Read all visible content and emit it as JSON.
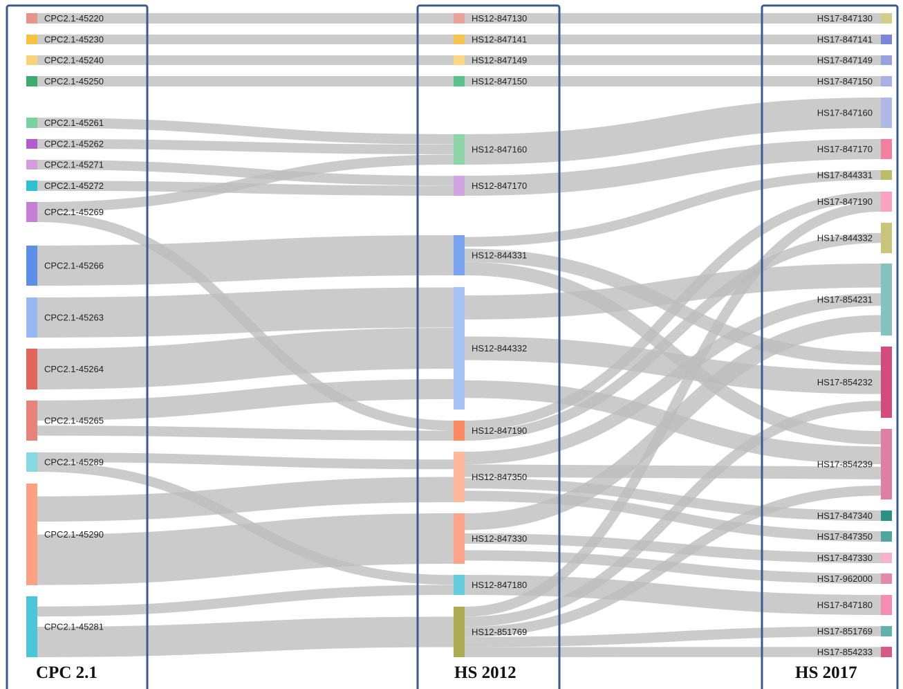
{
  "columns": [
    {
      "id": "cpc",
      "title": "CPC 2.1"
    },
    {
      "id": "hs12",
      "title": "HS 2012"
    },
    {
      "id": "hs17",
      "title": "HS 2017"
    }
  ],
  "colors": {
    "link": "#bdbdbd",
    "frame": "#3a5a8c"
  },
  "nodes": [
    {
      "id": "c45220",
      "label": "CPC2.1-45220",
      "col": 0,
      "color": "#e8948c"
    },
    {
      "id": "c45230",
      "label": "CPC2.1-45230",
      "col": 0,
      "color": "#f5c242"
    },
    {
      "id": "c45240",
      "label": "CPC2.1-45240",
      "col": 0,
      "color": "#fad27a"
    },
    {
      "id": "c45250",
      "label": "CPC2.1-45250",
      "col": 0,
      "color": "#3daa6e"
    },
    {
      "id": "c45261",
      "label": "CPC2.1-45261",
      "col": 0,
      "color": "#7ccfa0"
    },
    {
      "id": "c45262",
      "label": "CPC2.1-45262",
      "col": 0,
      "color": "#b35bd0"
    },
    {
      "id": "c45271",
      "label": "CPC2.1-45271",
      "col": 0,
      "color": "#d69ce0"
    },
    {
      "id": "c45272",
      "label": "CPC2.1-45272",
      "col": 0,
      "color": "#2ec0d0"
    },
    {
      "id": "c45269",
      "label": "CPC2.1-45269",
      "col": 0,
      "color": "#c67fd6"
    },
    {
      "id": "c45266",
      "label": "CPC2.1-45266",
      "col": 0,
      "color": "#5b8fe8"
    },
    {
      "id": "c45263",
      "label": "CPC2.1-45263",
      "col": 0,
      "color": "#98b8f2"
    },
    {
      "id": "c45264",
      "label": "CPC2.1-45264",
      "col": 0,
      "color": "#e0655a"
    },
    {
      "id": "c45265",
      "label": "CPC2.1-45265",
      "col": 0,
      "color": "#e8837a"
    },
    {
      "id": "c45289",
      "label": "CPC2.1-45289",
      "col": 0,
      "color": "#86d8e2"
    },
    {
      "id": "c45290",
      "label": "CPC2.1-45290",
      "col": 0,
      "color": "#fca184"
    },
    {
      "id": "c45281",
      "label": "CPC2.1-45281",
      "col": 0,
      "color": "#4bc6d6"
    },
    {
      "id": "h847130",
      "label": "HS12-847130",
      "col": 1,
      "color": "#eba29c"
    },
    {
      "id": "h847141",
      "label": "HS12-847141",
      "col": 1,
      "color": "#f7c44e"
    },
    {
      "id": "h847149",
      "label": "HS12-847149",
      "col": 1,
      "color": "#fad886"
    },
    {
      "id": "h847150",
      "label": "HS12-847150",
      "col": 1,
      "color": "#5cc08a"
    },
    {
      "id": "h847160",
      "label": "HS12-847160",
      "col": 1,
      "color": "#8fd3a8"
    },
    {
      "id": "h847170",
      "label": "HS12-847170",
      "col": 1,
      "color": "#d3a4e2"
    },
    {
      "id": "h844331",
      "label": "HS12-844331",
      "col": 1,
      "color": "#7aa3ef"
    },
    {
      "id": "h844332",
      "label": "HS12-844332",
      "col": 1,
      "color": "#a6c2f4"
    },
    {
      "id": "h847190",
      "label": "HS12-847190",
      "col": 1,
      "color": "#fb8a63"
    },
    {
      "id": "h847350",
      "label": "HS12-847350",
      "col": 1,
      "color": "#fdb89c"
    },
    {
      "id": "h847330",
      "label": "HS12-847330",
      "col": 1,
      "color": "#fca58a"
    },
    {
      "id": "h847180",
      "label": "HS12-847180",
      "col": 1,
      "color": "#64ccda"
    },
    {
      "id": "h851769",
      "label": "HS12-851769",
      "col": 1,
      "color": "#adab4f"
    },
    {
      "id": "s847130",
      "label": "HS17-847130",
      "col": 2,
      "color": "#d2ce8a"
    },
    {
      "id": "s847141",
      "label": "HS17-847141",
      "col": 2,
      "color": "#7b86d6"
    },
    {
      "id": "s847149",
      "label": "HS17-847149",
      "col": 2,
      "color": "#98a2e0"
    },
    {
      "id": "s847150",
      "label": "HS17-847150",
      "col": 2,
      "color": "#a8b0e4"
    },
    {
      "id": "s847160",
      "label": "HS17-847160",
      "col": 2,
      "color": "#b0b8e6"
    },
    {
      "id": "s847170",
      "label": "HS17-847170",
      "col": 2,
      "color": "#f0809e"
    },
    {
      "id": "s844331",
      "label": "HS17-844331",
      "col": 2,
      "color": "#bcbb66"
    },
    {
      "id": "s847190",
      "label": "HS17-847190",
      "col": 2,
      "color": "#f8a4c0"
    },
    {
      "id": "s844332",
      "label": "HS17-844332",
      "col": 2,
      "color": "#c8c47a"
    },
    {
      "id": "s854231",
      "label": "HS17-854231",
      "col": 2,
      "color": "#84c2bd"
    },
    {
      "id": "s854232",
      "label": "HS17-854232",
      "col": 2,
      "color": "#d24d7e"
    },
    {
      "id": "s854239",
      "label": "HS17-854239",
      "col": 2,
      "color": "#de7fa6"
    },
    {
      "id": "s847340",
      "label": "HS17-847340",
      "col": 2,
      "color": "#2e8f86"
    },
    {
      "id": "s847350",
      "label": "HS17-847350",
      "col": 2,
      "color": "#4ea69e"
    },
    {
      "id": "s847330",
      "label": "HS17-847330",
      "col": 2,
      "color": "#f6b2c8"
    },
    {
      "id": "s962000",
      "label": "HS17-962000",
      "col": 2,
      "color": "#e38aa8"
    },
    {
      "id": "s847180",
      "label": "HS17-847180",
      "col": 2,
      "color": "#f48db2"
    },
    {
      "id": "s851769",
      "label": "HS17-851769",
      "col": 2,
      "color": "#64b0aa"
    },
    {
      "id": "s854233",
      "label": "HS17-854233",
      "col": 2,
      "color": "#d65a88"
    }
  ],
  "links": [
    {
      "source": "c45220",
      "target": "h847130"
    },
    {
      "source": "c45230",
      "target": "h847141"
    },
    {
      "source": "c45240",
      "target": "h847149"
    },
    {
      "source": "c45250",
      "target": "h847150"
    },
    {
      "source": "c45261",
      "target": "h847160"
    },
    {
      "source": "c45262",
      "target": "h847160"
    },
    {
      "source": "c45269",
      "target": "h847160"
    },
    {
      "source": "c45271",
      "target": "h847170"
    },
    {
      "source": "c45272",
      "target": "h847170"
    },
    {
      "source": "c45269",
      "target": "h847190"
    },
    {
      "source": "c45266",
      "target": "h844331"
    },
    {
      "source": "c45263",
      "target": "h844332"
    },
    {
      "source": "c45264",
      "target": "h844332"
    },
    {
      "source": "c45265",
      "target": "h844332"
    },
    {
      "source": "c45265",
      "target": "h847190"
    },
    {
      "source": "c45289",
      "target": "h847350"
    },
    {
      "source": "c45289",
      "target": "h847180"
    },
    {
      "source": "c45290",
      "target": "h847350"
    },
    {
      "source": "c45290",
      "target": "h847330"
    },
    {
      "source": "c45281",
      "target": "h847180"
    },
    {
      "source": "c45281",
      "target": "h851769"
    },
    {
      "source": "h847130",
      "target": "s847130"
    },
    {
      "source": "h847141",
      "target": "s847141"
    },
    {
      "source": "h847149",
      "target": "s847149"
    },
    {
      "source": "h847150",
      "target": "s847150"
    },
    {
      "source": "h847160",
      "target": "s847160"
    },
    {
      "source": "h847170",
      "target": "s847170"
    },
    {
      "source": "h844331",
      "target": "s844331"
    },
    {
      "source": "h844331",
      "target": "s854232"
    },
    {
      "source": "h844331",
      "target": "s854239"
    },
    {
      "source": "h844332",
      "target": "s854231"
    },
    {
      "source": "h844332",
      "target": "s854232"
    },
    {
      "source": "h844332",
      "target": "s854239"
    },
    {
      "source": "h847190",
      "target": "s847190"
    },
    {
      "source": "h847190",
      "target": "s844332"
    },
    {
      "source": "h847350",
      "target": "s854231"
    },
    {
      "source": "h847350",
      "target": "s854239"
    },
    {
      "source": "h847350",
      "target": "s847340"
    },
    {
      "source": "h847350",
      "target": "s847350"
    },
    {
      "source": "h847330",
      "target": "s854231"
    },
    {
      "source": "h847330",
      "target": "s847330"
    },
    {
      "source": "h847330",
      "target": "s962000"
    },
    {
      "source": "h847180",
      "target": "s847180"
    },
    {
      "source": "h851769",
      "target": "s847190"
    },
    {
      "source": "h851769",
      "target": "s854232"
    },
    {
      "source": "h851769",
      "target": "s854239"
    },
    {
      "source": "h851769",
      "target": "s851769"
    },
    {
      "source": "h851769",
      "target": "s854233"
    }
  ]
}
